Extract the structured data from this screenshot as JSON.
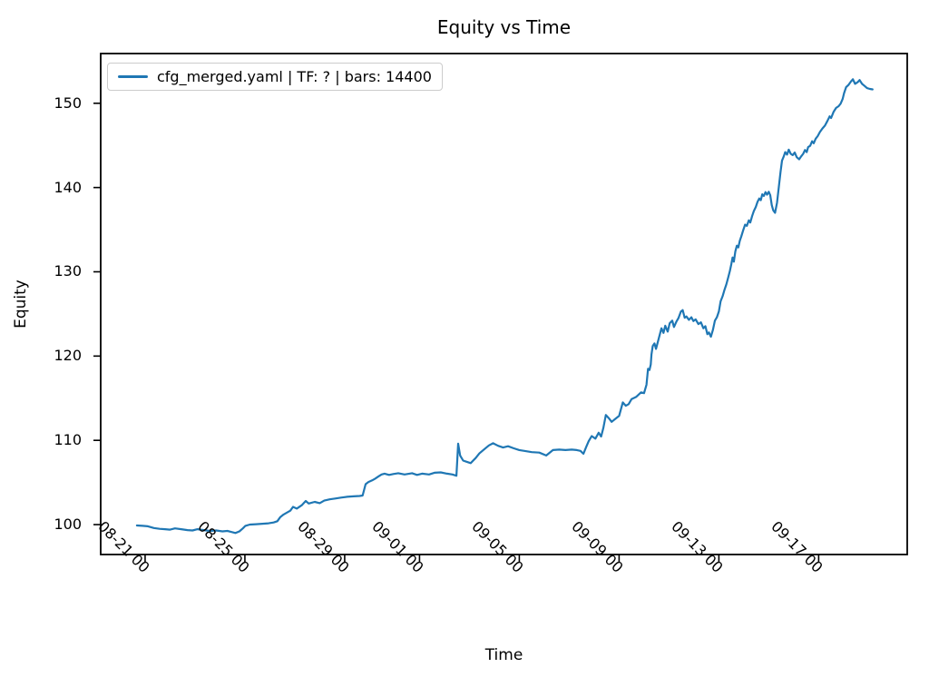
{
  "figure": {
    "background": "#ffffff"
  },
  "chart_data": {
    "type": "line",
    "title": "Equity vs Time",
    "xlabel": "Time",
    "ylabel": "Equity",
    "grid": false,
    "legend_position": "upper left",
    "line_color": "#1f77b4",
    "axis_color": "#000000",
    "x_unit": "days, 0 = 08-21 00:00",
    "xlim": [
      -1.78,
      30.55
    ],
    "ylim": [
      96.45,
      155.9
    ],
    "x_ticks": [
      {
        "t": 0,
        "label": "08-21 00"
      },
      {
        "t": 4,
        "label": "08-25 00"
      },
      {
        "t": 8,
        "label": "08-29 00"
      },
      {
        "t": 11,
        "label": "09-01 00"
      },
      {
        "t": 15,
        "label": "09-05 00"
      },
      {
        "t": 19,
        "label": "09-09 00"
      },
      {
        "t": 23,
        "label": "09-13 00"
      },
      {
        "t": 27,
        "label": "09-17 00"
      }
    ],
    "y_ticks": [
      100,
      110,
      120,
      130,
      140,
      150
    ],
    "series": [
      {
        "name": "cfg_merged.yaml | TF: ? | bars: 14400",
        "points": [
          [
            -0.33,
            99.9
          ],
          [
            -0.1,
            99.85
          ],
          [
            0.11,
            99.8
          ],
          [
            0.35,
            99.6
          ],
          [
            0.58,
            99.5
          ],
          [
            0.8,
            99.45
          ],
          [
            1.0,
            99.4
          ],
          [
            1.2,
            99.55
          ],
          [
            1.45,
            99.45
          ],
          [
            1.7,
            99.35
          ],
          [
            1.9,
            99.3
          ],
          [
            2.1,
            99.45
          ],
          [
            2.35,
            99.35
          ],
          [
            2.6,
            99.25
          ],
          [
            2.85,
            99.3
          ],
          [
            3.1,
            99.2
          ],
          [
            3.3,
            99.25
          ],
          [
            3.5,
            99.1
          ],
          [
            3.62,
            99.0
          ],
          [
            3.78,
            99.2
          ],
          [
            3.92,
            99.55
          ],
          [
            4.02,
            99.85
          ],
          [
            4.2,
            100.0
          ],
          [
            4.45,
            100.05
          ],
          [
            4.7,
            100.1
          ],
          [
            4.95,
            100.15
          ],
          [
            5.15,
            100.25
          ],
          [
            5.3,
            100.4
          ],
          [
            5.42,
            100.9
          ],
          [
            5.55,
            101.2
          ],
          [
            5.7,
            101.45
          ],
          [
            5.82,
            101.65
          ],
          [
            5.93,
            102.1
          ],
          [
            6.08,
            101.9
          ],
          [
            6.28,
            102.3
          ],
          [
            6.44,
            102.8
          ],
          [
            6.56,
            102.5
          ],
          [
            6.8,
            102.7
          ],
          [
            7.0,
            102.55
          ],
          [
            7.18,
            102.85
          ],
          [
            7.4,
            103.0
          ],
          [
            7.62,
            103.1
          ],
          [
            7.85,
            103.2
          ],
          [
            8.1,
            103.3
          ],
          [
            8.35,
            103.35
          ],
          [
            8.6,
            103.4
          ],
          [
            8.72,
            103.45
          ],
          [
            8.84,
            104.8
          ],
          [
            8.95,
            105.05
          ],
          [
            9.1,
            105.25
          ],
          [
            9.22,
            105.45
          ],
          [
            9.35,
            105.7
          ],
          [
            9.48,
            105.95
          ],
          [
            9.6,
            106.05
          ],
          [
            9.78,
            105.9
          ],
          [
            9.95,
            106.0
          ],
          [
            10.15,
            106.1
          ],
          [
            10.4,
            105.95
          ],
          [
            10.7,
            106.1
          ],
          [
            10.9,
            105.9
          ],
          [
            11.1,
            106.05
          ],
          [
            11.38,
            105.95
          ],
          [
            11.6,
            106.15
          ],
          [
            11.85,
            106.2
          ],
          [
            12.1,
            106.05
          ],
          [
            12.32,
            105.95
          ],
          [
            12.48,
            105.8
          ],
          [
            12.55,
            109.6
          ],
          [
            12.63,
            108.2
          ],
          [
            12.75,
            107.6
          ],
          [
            12.9,
            107.45
          ],
          [
            13.05,
            107.3
          ],
          [
            13.25,
            107.9
          ],
          [
            13.4,
            108.45
          ],
          [
            13.6,
            108.95
          ],
          [
            13.78,
            109.4
          ],
          [
            13.95,
            109.65
          ],
          [
            14.15,
            109.35
          ],
          [
            14.35,
            109.15
          ],
          [
            14.55,
            109.3
          ],
          [
            14.78,
            109.05
          ],
          [
            15.0,
            108.85
          ],
          [
            15.2,
            108.75
          ],
          [
            15.5,
            108.6
          ],
          [
            15.8,
            108.55
          ],
          [
            16.08,
            108.2
          ],
          [
            16.35,
            108.85
          ],
          [
            16.6,
            108.9
          ],
          [
            16.85,
            108.85
          ],
          [
            17.1,
            108.9
          ],
          [
            17.3,
            108.85
          ],
          [
            17.45,
            108.75
          ],
          [
            17.57,
            108.4
          ],
          [
            17.68,
            109.2
          ],
          [
            17.78,
            109.9
          ],
          [
            17.9,
            110.5
          ],
          [
            18.05,
            110.2
          ],
          [
            18.18,
            110.9
          ],
          [
            18.28,
            110.45
          ],
          [
            18.37,
            111.5
          ],
          [
            18.47,
            113.0
          ],
          [
            18.58,
            112.65
          ],
          [
            18.7,
            112.2
          ],
          [
            18.85,
            112.55
          ],
          [
            19.0,
            112.9
          ],
          [
            19.15,
            114.5
          ],
          [
            19.27,
            114.1
          ],
          [
            19.38,
            114.3
          ],
          [
            19.5,
            114.9
          ],
          [
            19.68,
            115.15
          ],
          [
            19.88,
            115.7
          ],
          [
            20.0,
            115.6
          ],
          [
            20.1,
            116.6
          ],
          [
            20.16,
            118.5
          ],
          [
            20.22,
            118.35
          ],
          [
            20.27,
            119.0
          ],
          [
            20.3,
            120.2
          ],
          [
            20.35,
            121.2
          ],
          [
            20.42,
            121.5
          ],
          [
            20.48,
            120.85
          ],
          [
            20.6,
            122.2
          ],
          [
            20.7,
            123.3
          ],
          [
            20.78,
            122.75
          ],
          [
            20.85,
            123.6
          ],
          [
            20.95,
            122.9
          ],
          [
            21.03,
            123.9
          ],
          [
            21.13,
            124.2
          ],
          [
            21.2,
            123.45
          ],
          [
            21.3,
            124.1
          ],
          [
            21.38,
            124.5
          ],
          [
            21.48,
            125.3
          ],
          [
            21.55,
            125.45
          ],
          [
            21.63,
            124.55
          ],
          [
            21.7,
            124.7
          ],
          [
            21.8,
            124.3
          ],
          [
            21.9,
            124.6
          ],
          [
            21.98,
            124.15
          ],
          [
            22.07,
            124.35
          ],
          [
            22.18,
            123.8
          ],
          [
            22.28,
            124.0
          ],
          [
            22.38,
            123.3
          ],
          [
            22.46,
            123.55
          ],
          [
            22.54,
            122.6
          ],
          [
            22.6,
            122.8
          ],
          [
            22.68,
            122.3
          ],
          [
            22.76,
            123.1
          ],
          [
            22.84,
            124.2
          ],
          [
            22.92,
            124.6
          ],
          [
            23.0,
            125.3
          ],
          [
            23.07,
            126.5
          ],
          [
            23.15,
            127.1
          ],
          [
            23.22,
            127.8
          ],
          [
            23.3,
            128.5
          ],
          [
            23.37,
            129.3
          ],
          [
            23.44,
            130.1
          ],
          [
            23.5,
            130.9
          ],
          [
            23.55,
            131.7
          ],
          [
            23.6,
            131.2
          ],
          [
            23.66,
            132.4
          ],
          [
            23.72,
            133.1
          ],
          [
            23.78,
            132.9
          ],
          [
            23.84,
            133.7
          ],
          [
            23.9,
            134.2
          ],
          [
            23.97,
            134.9
          ],
          [
            24.05,
            135.6
          ],
          [
            24.12,
            135.45
          ],
          [
            24.2,
            136.1
          ],
          [
            24.26,
            135.85
          ],
          [
            24.33,
            136.6
          ],
          [
            24.4,
            137.2
          ],
          [
            24.48,
            137.7
          ],
          [
            24.55,
            138.3
          ],
          [
            24.62,
            138.7
          ],
          [
            24.68,
            138.5
          ],
          [
            24.74,
            139.2
          ],
          [
            24.8,
            139.0
          ],
          [
            24.87,
            139.45
          ],
          [
            24.93,
            139.15
          ],
          [
            25.0,
            139.5
          ],
          [
            25.06,
            139.1
          ],
          [
            25.12,
            137.9
          ],
          [
            25.18,
            137.3
          ],
          [
            25.25,
            137.0
          ],
          [
            25.33,
            138.2
          ],
          [
            25.4,
            140.0
          ],
          [
            25.47,
            141.8
          ],
          [
            25.53,
            143.2
          ],
          [
            25.6,
            143.7
          ],
          [
            25.66,
            144.2
          ],
          [
            25.73,
            143.9
          ],
          [
            25.8,
            144.5
          ],
          [
            25.88,
            144.0
          ],
          [
            25.96,
            143.85
          ],
          [
            26.04,
            144.15
          ],
          [
            26.12,
            143.6
          ],
          [
            26.22,
            143.35
          ],
          [
            26.3,
            143.7
          ],
          [
            26.38,
            144.0
          ],
          [
            26.45,
            144.45
          ],
          [
            26.52,
            144.2
          ],
          [
            26.58,
            144.8
          ],
          [
            26.66,
            144.95
          ],
          [
            26.74,
            145.5
          ],
          [
            26.8,
            145.25
          ],
          [
            26.88,
            145.8
          ],
          [
            26.96,
            146.1
          ],
          [
            27.05,
            146.6
          ],
          [
            27.15,
            147.0
          ],
          [
            27.25,
            147.35
          ],
          [
            27.35,
            147.9
          ],
          [
            27.44,
            148.45
          ],
          [
            27.5,
            148.25
          ],
          [
            27.6,
            149.0
          ],
          [
            27.7,
            149.45
          ],
          [
            27.8,
            149.65
          ],
          [
            27.88,
            149.95
          ],
          [
            27.96,
            150.5
          ],
          [
            28.02,
            151.2
          ],
          [
            28.1,
            151.9
          ],
          [
            28.2,
            152.2
          ],
          [
            28.3,
            152.6
          ],
          [
            28.37,
            152.85
          ],
          [
            28.46,
            152.3
          ],
          [
            28.56,
            152.5
          ],
          [
            28.64,
            152.75
          ],
          [
            28.74,
            152.3
          ],
          [
            28.84,
            152.05
          ],
          [
            28.94,
            151.8
          ],
          [
            29.05,
            151.7
          ],
          [
            29.16,
            151.65
          ]
        ]
      }
    ]
  }
}
